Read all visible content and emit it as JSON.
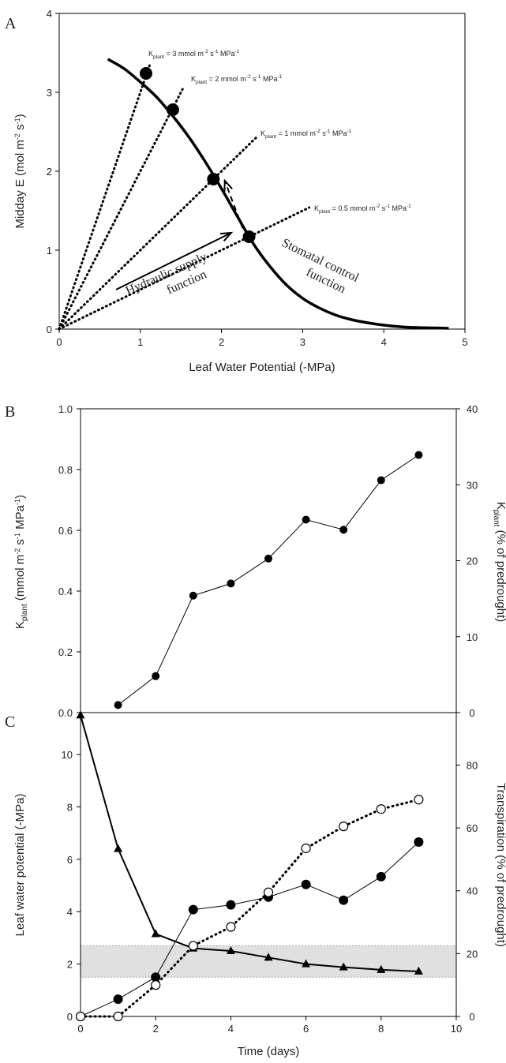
{
  "chart_data": [
    {
      "panel": "A",
      "type": "line",
      "xlabel": "Leaf Water Potential (-MPa)",
      "ylabel": {
        "main": "Midday E (mol m",
        "sup1": "-2",
        "mid": " s",
        "sup2": "-1",
        "end": ")"
      },
      "xlim": [
        0,
        5
      ],
      "ylim": [
        0,
        4
      ],
      "xticks": [
        0,
        1,
        2,
        3,
        4,
        5
      ],
      "yticks": [
        0,
        1,
        2,
        3,
        4
      ],
      "stomatal_curve": {
        "x": [
          0.6,
          0.8,
          1.0,
          1.2,
          1.4,
          1.6,
          1.8,
          2.0,
          2.2,
          2.4,
          2.6,
          2.8,
          3.0,
          3.2,
          3.4,
          3.6,
          3.8,
          4.0,
          4.2,
          4.4,
          4.6,
          4.8
        ],
        "y": [
          3.42,
          3.3,
          3.13,
          2.94,
          2.7,
          2.43,
          2.12,
          1.78,
          1.42,
          1.07,
          0.79,
          0.56,
          0.39,
          0.27,
          0.18,
          0.12,
          0.08,
          0.05,
          0.03,
          0.02,
          0.015,
          0.01
        ]
      },
      "supply_lines": [
        {
          "k": 3,
          "x": [
            0,
            1.12
          ],
          "y": [
            0,
            3.36
          ]
        },
        {
          "k": 2,
          "x": [
            0,
            1.52
          ],
          "y": [
            0,
            3.04
          ]
        },
        {
          "k": 1,
          "x": [
            0,
            2.43
          ],
          "y": [
            0,
            2.43
          ]
        },
        {
          "k": 0.5,
          "x": [
            0,
            3.08
          ],
          "y": [
            0,
            1.54
          ]
        }
      ],
      "intersections": {
        "x": [
          1.07,
          1.4,
          1.9,
          2.34
        ],
        "y": [
          3.24,
          2.78,
          1.9,
          1.17
        ]
      },
      "line_labels": [
        {
          "k_value": "= 3 mmol m",
          "tail": " s",
          "unit": " MPa"
        },
        {
          "k_value": "= 2 mmol m",
          "tail": " s",
          "unit": " MPa"
        },
        {
          "k_value": "= 1 mmol m",
          "tail": " s",
          "unit": " MPa"
        },
        {
          "k_value": "= 0.5 mmol m",
          "tail": " s",
          "unit": " MPa"
        }
      ],
      "k_symbol": "K",
      "k_sub": "plant",
      "sup_m2": "-2",
      "sup_m1": "-1",
      "annotations": {
        "supply_line1": "Hydraulic supply",
        "supply_line2": "function",
        "control_line1": "Stomatal control",
        "control_line2": "function"
      },
      "arrows": {
        "supply": {
          "from": [
            0.7,
            0.5
          ],
          "to": [
            2.12,
            1.22
          ]
        },
        "dashed": {
          "from": [
            2.26,
            1.28
          ],
          "to": [
            2.04,
            1.88
          ]
        }
      }
    },
    {
      "panel": "B",
      "type": "line",
      "ylabel_left": {
        "k": "K",
        "sub": "plant",
        "rest": " (mmol m",
        "sup1": "-2",
        "mid": " s",
        "sup2": "-1",
        "mid2": " MPa",
        "sup3": "-1",
        "end": ")"
      },
      "ylabel_right": {
        "k": "K",
        "sub": "plant",
        "rest": " (% of predrought)"
      },
      "xlim": [
        0,
        10
      ],
      "ylim_left": [
        0.0,
        1.0
      ],
      "ylim_right": [
        0,
        40
      ],
      "yticks_left": [
        "0.0",
        "0.2",
        "0.4",
        "0.6",
        "0.8",
        "1.0"
      ],
      "yticks_right": [
        "0",
        "10",
        "20",
        "30",
        "40"
      ],
      "series": [
        {
          "x": [
            1,
            2,
            3,
            4,
            5,
            6,
            7,
            8,
            9
          ],
          "values": [
            0.025,
            0.12,
            0.385,
            0.425,
            0.507,
            0.635,
            0.602,
            0.765,
            0.848
          ]
        }
      ]
    },
    {
      "panel": "C",
      "type": "line",
      "xlabel": "Time (days)",
      "ylabel_left": "Leaf water potential (-MPa)",
      "ylabel_right": "Transpiration (% of predrought)",
      "xlim": [
        0,
        10
      ],
      "ylim_left": [
        0,
        11.6
      ],
      "ylim_right": [
        0,
        96.7
      ],
      "xticks": [
        0,
        2,
        4,
        6,
        8,
        10
      ],
      "yticks_left": [
        0,
        2,
        4,
        6,
        8,
        10
      ],
      "yticks_right": [
        0,
        20,
        40,
        60,
        80
      ],
      "shaded_band_left": [
        1.5,
        2.7
      ],
      "series": [
        {
          "marker": "triangle",
          "axis": "left",
          "x": [
            0,
            1,
            2,
            3,
            4,
            5,
            6,
            7,
            8,
            9
          ],
          "values": [
            11.5,
            6.4,
            3.15,
            2.6,
            2.5,
            2.25,
            2.0,
            1.88,
            1.78,
            1.72
          ]
        },
        {
          "marker": "filled-circle",
          "axis": "right",
          "x": [
            0,
            1,
            2,
            3,
            4,
            5,
            6,
            7,
            8,
            9
          ],
          "values": [
            0,
            5.5,
            12.5,
            34,
            35.5,
            38,
            42,
            37,
            44.5,
            55.5
          ]
        },
        {
          "marker": "open-circle",
          "axis": "right",
          "x": [
            0,
            1,
            2,
            3,
            4,
            5,
            6,
            7,
            8,
            9
          ],
          "values": [
            0,
            0,
            10,
            22.5,
            28.5,
            39.5,
            53.5,
            60.5,
            66,
            69
          ]
        }
      ]
    }
  ]
}
